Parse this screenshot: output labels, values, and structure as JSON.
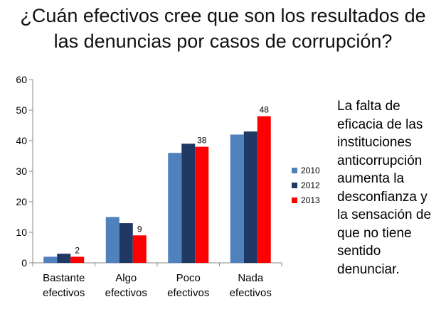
{
  "title": {
    "line1": "¿Cuán efectivos cree que son los resultados de",
    "line2": "las denuncias por casos de corrupción?"
  },
  "side_note": {
    "lines": [
      "La falta de",
      "eficacia de las",
      "instituciones",
      "anticorrupción",
      "aumenta la",
      "desconfianza y",
      "la sensación de",
      "que no tiene",
      "sentido",
      "denunciar."
    ]
  },
  "chart_data": {
    "type": "bar",
    "title": "",
    "xlabel": "",
    "ylabel": "",
    "categories": [
      [
        "Bastante",
        "efectivos"
      ],
      [
        "Algo",
        "efectivos"
      ],
      [
        "Poco",
        "efectivos"
      ],
      [
        "Nada",
        "efectivos"
      ]
    ],
    "series": [
      {
        "name": "2010",
        "color": "#4F81BD",
        "values": [
          2,
          15,
          36,
          42
        ],
        "labels": [
          "",
          "",
          "",
          ""
        ]
      },
      {
        "name": "2012",
        "color": "#1F3864",
        "values": [
          3,
          13,
          39,
          43
        ],
        "labels": [
          "",
          "",
          "",
          ""
        ]
      },
      {
        "name": "2013",
        "color": "#FF0000",
        "values": [
          2,
          9,
          38,
          48
        ],
        "labels": [
          "2",
          "9",
          "38",
          "48"
        ]
      }
    ],
    "ylim": [
      0,
      60
    ],
    "yticks": [
      0,
      10,
      20,
      30,
      40,
      50,
      60
    ],
    "grid": false,
    "legend": "right"
  }
}
